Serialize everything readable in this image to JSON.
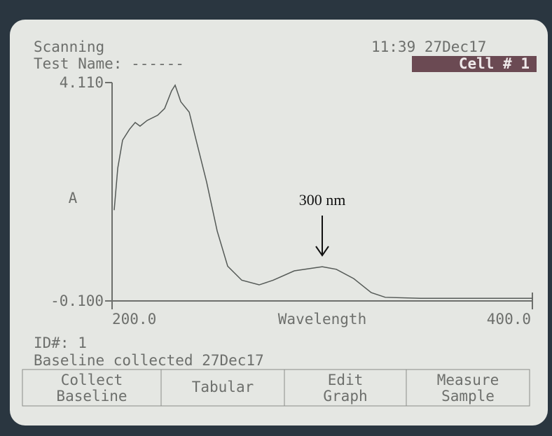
{
  "status": "Scanning",
  "clock": "11:39 27Dec17",
  "test_name": "Test Name: ------",
  "cell": "Cell # 1",
  "chart_data": {
    "type": "line",
    "ylabel": "A",
    "xlabel": "Wavelength",
    "annotation": "300 nm",
    "annotation_x": 300,
    "xlim": [
      200,
      400
    ],
    "ylim": [
      -0.1,
      4.11
    ],
    "xticks": [
      {
        "value": 200,
        "label": "200.0"
      },
      {
        "value": 400,
        "label": "400.0"
      }
    ],
    "yticks": [
      {
        "value": -0.1,
        "label": "-0.100"
      },
      {
        "value": 4.11,
        "label": "4.110"
      }
    ],
    "color": "#555a57",
    "x": [
      201,
      202.7,
      205,
      208.3,
      211,
      213.3,
      216.7,
      221.7,
      225,
      228.3,
      230,
      232.7,
      236.7,
      240,
      245,
      250,
      255,
      261.7,
      270,
      276.7,
      286.7,
      300,
      306.7,
      315,
      323.3,
      330,
      346.7,
      400
    ],
    "values": [
      1.65,
      2.46,
      3.0,
      3.21,
      3.34,
      3.27,
      3.38,
      3.48,
      3.61,
      3.95,
      4.06,
      3.74,
      3.54,
      3.0,
      2.19,
      1.25,
      0.57,
      0.3,
      0.21,
      0.3,
      0.48,
      0.56,
      0.51,
      0.33,
      0.06,
      -0.03,
      -0.05,
      -0.05
    ]
  },
  "id": "ID#: 1",
  "baseline": "Baseline collected 27Dec17",
  "buttons": [
    [
      "Collect",
      "Baseline"
    ],
    [
      "Tabular"
    ],
    [
      "Edit",
      "Graph"
    ],
    [
      "Measure",
      "Sample"
    ]
  ]
}
